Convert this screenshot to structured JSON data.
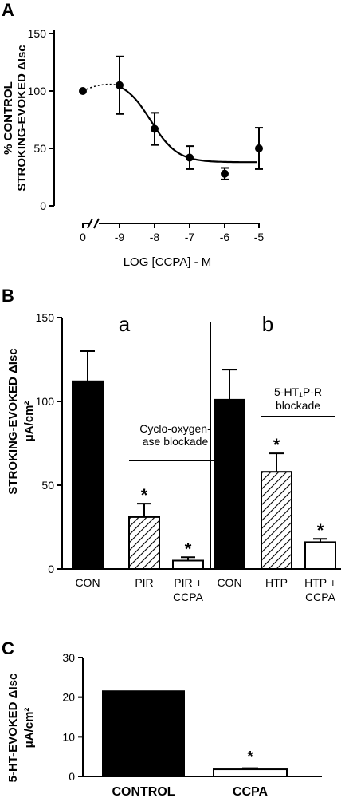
{
  "panels": {
    "A": {
      "label": "A",
      "ylabel_line1": "% CONTROL",
      "ylabel_line2": "STROKING-EVOKED ΔIsc",
      "xlabel": "LOG [CCPA] - M",
      "yticks": [
        "0",
        "50",
        "100",
        "150"
      ],
      "xticks": [
        "0",
        "-9",
        "-8",
        "-7",
        "-6",
        "-5"
      ]
    },
    "B": {
      "label": "B",
      "ylabel_line1": "STROKING-EVOKED ΔIsc",
      "ylabel_line2": "μA/cm²",
      "yticks": [
        "0",
        "50",
        "100",
        "150"
      ],
      "sub_a": "a",
      "sub_b": "b",
      "annotation_a_line1": "Cyclo-oxygen-",
      "annotation_a_line2": "ase blockade",
      "annotation_b_line1": "5-HT₁P-R",
      "annotation_b_line2": "blockade"
    },
    "C": {
      "label": "C",
      "ylabel_line1": "5-HT-EVOKED ΔIsc",
      "ylabel_line2": "μA/cm²",
      "yticks": [
        "0",
        "10",
        "20",
        "30"
      ]
    }
  },
  "chart_data": [
    {
      "panel": "A",
      "type": "scatter",
      "ylabel": "% CONTROL STROKING-EVOKED ΔIsc",
      "xlabel": "LOG [CCPA] - M",
      "ylim": [
        0,
        150
      ],
      "x": [
        0,
        -9,
        -8,
        -7,
        -6,
        -5
      ],
      "x_tick_labels": [
        "0",
        "-9",
        "-8",
        "-7",
        "-6",
        "-5"
      ],
      "axis_break": "between 0 and -9",
      "series": [
        {
          "values": [
            100,
            105,
            67,
            42,
            28,
            50
          ],
          "errors": [
            0,
            25,
            14,
            10,
            5,
            18
          ]
        }
      ],
      "fit_curve": "sigmoid from 110 to 38",
      "grid": false
    },
    {
      "panel": "B",
      "type": "bar",
      "ylabel": "STROKING-EVOKED ΔIsc μA/cm²",
      "ylim": [
        0,
        150
      ],
      "groups": [
        {
          "name": "a",
          "categories": [
            "CON",
            "PIR",
            "PIR +\nCCPA"
          ],
          "values": [
            112,
            31,
            5
          ],
          "errors": [
            18,
            8,
            2
          ],
          "significant": [
            false,
            true,
            true
          ],
          "fills": [
            "solid",
            "hatched",
            "open"
          ]
        },
        {
          "name": "b",
          "categories": [
            "CON",
            "HTP",
            "HTP +\nCCPA"
          ],
          "values": [
            101,
            58,
            16
          ],
          "errors": [
            18,
            11,
            2
          ],
          "significant": [
            false,
            true,
            true
          ],
          "fills": [
            "solid",
            "hatched",
            "open"
          ]
        }
      ],
      "grid": false
    },
    {
      "panel": "C",
      "type": "bar",
      "ylabel": "5-HT-EVOKED ΔIsc μA/cm²",
      "ylim": [
        0,
        30
      ],
      "categories": [
        "CONTROL",
        "CCPA"
      ],
      "values": [
        21.5,
        1.8
      ],
      "errors": [
        0,
        0.3
      ],
      "significant": [
        false,
        true
      ],
      "fills": [
        "solid",
        "open"
      ],
      "grid": false
    }
  ]
}
